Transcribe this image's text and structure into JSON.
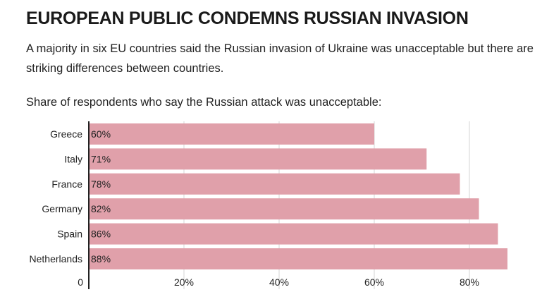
{
  "header": {
    "title": "EUROPEAN PUBLIC CONDEMNS RUSSIAN INVASION",
    "subtitle": "A majority in six EU countries said the Russian invasion of Ukraine was unacceptable but there are striking differences between countries.",
    "chart_label": "Share of respondents who say the Russian attack was unacceptable:"
  },
  "colors": {
    "bar": "#e0a0aa",
    "axis": "#222222",
    "grid": "#d4d4d4",
    "text": "#222222"
  },
  "chart_data": {
    "type": "bar",
    "orientation": "horizontal",
    "title": "Share of respondents who say the Russian attack was unacceptable:",
    "categories": [
      "Greece",
      "Italy",
      "France",
      "Germany",
      "Spain",
      "Netherlands"
    ],
    "values": [
      60,
      71,
      78,
      82,
      86,
      88
    ],
    "value_labels": [
      "60%",
      "71%",
      "78%",
      "82%",
      "86%",
      "88%"
    ],
    "unit": "%",
    "xlim": [
      0,
      88
    ],
    "xticks": [
      0,
      20,
      40,
      60,
      80
    ],
    "xtick_labels": [
      "0",
      "20%",
      "40%",
      "60%",
      "80%"
    ],
    "grid": true,
    "xlabel": "",
    "ylabel": ""
  }
}
